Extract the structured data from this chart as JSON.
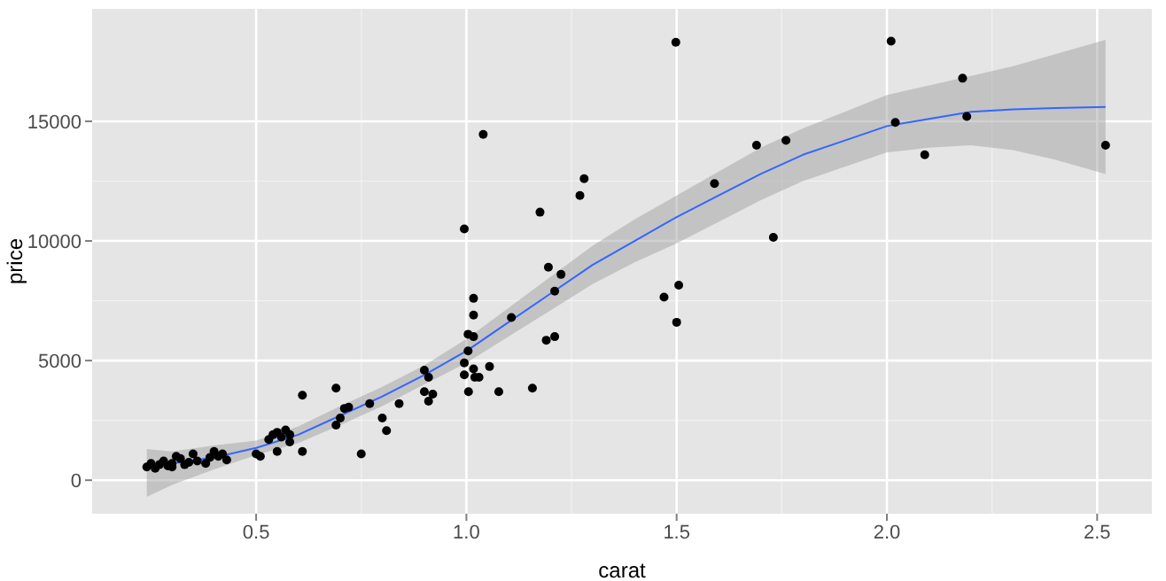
{
  "chart_data": {
    "type": "scatter",
    "xlabel": "carat",
    "ylabel": "price",
    "xlim": [
      0.11,
      2.63
    ],
    "ylim": [
      -1400,
      19700
    ],
    "xticks": [
      0.5,
      {
        "value": 1,
        "label": "1.0"
      },
      1.5,
      {
        "value": 2,
        "label": "2.0"
      },
      2.5
    ],
    "yticks": [
      0,
      5000,
      10000,
      15000
    ],
    "grid": true,
    "legend": false,
    "series": [
      {
        "marker": "circle",
        "color": "#000000",
        "x": [
          0.24,
          0.25,
          0.26,
          0.27,
          0.28,
          0.29,
          0.3,
          0.31,
          0.32,
          0.33,
          0.35,
          0.36,
          0.38,
          0.39,
          0.4,
          0.41,
          0.42,
          0.43,
          0.3,
          0.34,
          0.5,
          0.51,
          0.53,
          0.54,
          0.55,
          0.56,
          0.57,
          0.58,
          0.55,
          0.58,
          0.61,
          0.61,
          0.69,
          0.69,
          0.7,
          0.71,
          0.72,
          0.75,
          0.77,
          0.8,
          0.81,
          0.84,
          0.9,
          0.91,
          0.9,
          0.92,
          0.91,
          0.995,
          1.017,
          1.017,
          1.004,
          1.017,
          1.004,
          0.995,
          0.995,
          1.017,
          1.02,
          1.03,
          1.005,
          1.055,
          1.077,
          1.107,
          1.157,
          1.19,
          1.21,
          1.195,
          1.225,
          1.21,
          1.175,
          1.27,
          1.28,
          1.04,
          1.498,
          2.01,
          2.18,
          2.19,
          2.02,
          2.09,
          2.52,
          1.69,
          1.76,
          1.59,
          1.73,
          1.505,
          1.47,
          1.5
        ],
        "values": [
          550,
          700,
          500,
          650,
          800,
          600,
          700,
          1000,
          900,
          650,
          1100,
          800,
          700,
          950,
          1200,
          1000,
          1100,
          850,
          550,
          750,
          1100,
          1000,
          1700,
          1900,
          2000,
          1800,
          2100,
          1900,
          1200,
          1600,
          3550,
          1200,
          3850,
          2300,
          2600,
          3000,
          3050,
          1100,
          3200,
          2600,
          2070,
          3200,
          4600,
          4300,
          3700,
          3600,
          3300,
          10500,
          7600,
          6900,
          6100,
          6000,
          5400,
          4900,
          4400,
          4650,
          4300,
          4300,
          3700,
          4750,
          3700,
          6800,
          3850,
          5850,
          6000,
          8900,
          8600,
          7900,
          11200,
          11900,
          12600,
          14450,
          18300,
          18350,
          16800,
          15200,
          14950,
          13600,
          14000,
          14000,
          14200,
          12400,
          10150,
          8150,
          7650,
          6600
        ]
      },
      {
        "type": "line",
        "color": "#3366ff",
        "x": [
          0.24,
          0.3,
          0.4,
          0.5,
          0.6,
          0.7,
          0.8,
          0.9,
          1.0,
          1.1,
          1.2,
          1.3,
          1.4,
          1.5,
          1.6,
          1.7,
          1.8,
          1.9,
          2.0,
          2.1,
          2.2,
          2.3,
          2.4,
          2.52
        ],
        "values": [
          500,
          700,
          950,
          1350,
          1900,
          2700,
          3500,
          4400,
          5400,
          6600,
          7800,
          9000,
          10000,
          11000,
          11900,
          12800,
          13600,
          14200,
          14800,
          15100,
          15400,
          15500,
          15550,
          15600
        ],
        "lower": [
          -700,
          -200,
          450,
          1050,
          1550,
          2300,
          3100,
          4000,
          4900,
          6000,
          7100,
          8200,
          9100,
          9900,
          10800,
          11700,
          12500,
          13100,
          13700,
          13900,
          14000,
          13800,
          13400,
          12800
        ],
        "upper": [
          1300,
          1200,
          1450,
          1650,
          2250,
          3100,
          3900,
          4800,
          5900,
          7200,
          8500,
          9800,
          10900,
          11900,
          12900,
          13900,
          14700,
          15400,
          16100,
          16500,
          16900,
          17300,
          17800,
          18400
        ]
      }
    ]
  }
}
